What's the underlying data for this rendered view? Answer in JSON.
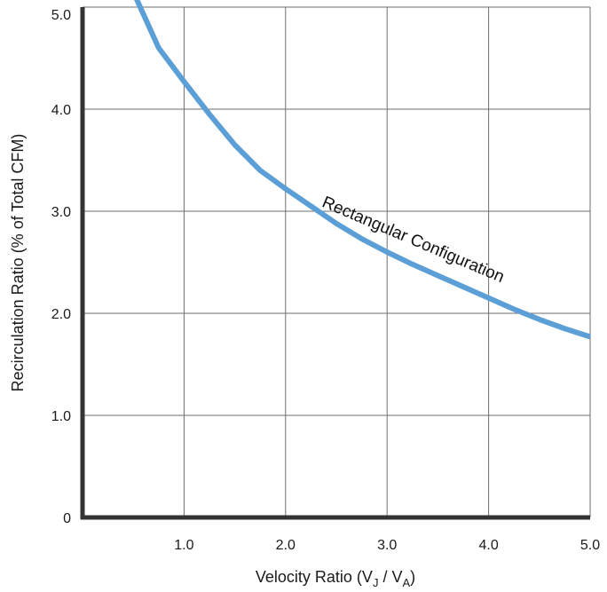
{
  "chart_data": {
    "type": "line",
    "title": "",
    "xlabel": "Velocity Ratio (V",
    "xlabel_sub1": "J",
    "xlabel_mid": " / V",
    "xlabel_sub2": "A",
    "xlabel_end": ")",
    "ylabel": "Recirculation Ratio (% of Total CFM)",
    "xlim": [
      0,
      5
    ],
    "ylim": [
      0,
      5
    ],
    "x_ticks": [
      1,
      2,
      3,
      4,
      5
    ],
    "x_tick_labels": [
      "1.0",
      "2.0",
      "3.0",
      "4.0",
      "5.0"
    ],
    "y_ticks": [
      0,
      1,
      2,
      3,
      4,
      5
    ],
    "y_tick_labels": [
      "0",
      "1.0",
      "2.0",
      "3.0",
      "4.0",
      "5.0"
    ],
    "grid": true,
    "series": [
      {
        "x": [
          0.5,
          0.75,
          1.0,
          1.25,
          1.5,
          1.75,
          2.0,
          2.25,
          2.5,
          2.75,
          3.0,
          3.25,
          3.5,
          3.75,
          4.0,
          4.25,
          4.5,
          4.75,
          5.0
        ],
        "values": [
          5.15,
          4.6,
          4.27,
          3.95,
          3.65,
          3.4,
          3.22,
          3.05,
          2.88,
          2.73,
          2.6,
          2.48,
          2.37,
          2.26,
          2.15,
          2.04,
          1.94,
          1.85,
          1.77
        ],
        "color": "#5b9fd6"
      }
    ],
    "annotations": [
      {
        "text": "Rectangular Configuration",
        "x": 2.35,
        "y": 3.05
      }
    ]
  }
}
